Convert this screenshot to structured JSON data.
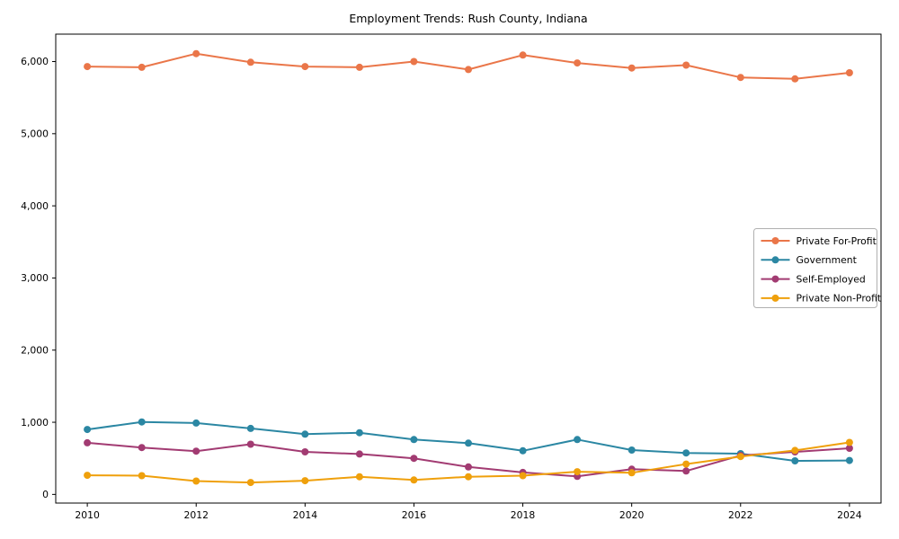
{
  "page": {
    "background": "#ffffff"
  },
  "chart_data": {
    "type": "line",
    "title": "Employment Trends: Rush County, Indiana",
    "xlabel": "",
    "ylabel": "",
    "grid": false,
    "xlim": [
      2009.42,
      2024.58
    ],
    "ylim": [
      -120,
      6380
    ],
    "x": [
      2010,
      2011,
      2012,
      2013,
      2014,
      2015,
      2016,
      2017,
      2018,
      2019,
      2020,
      2021,
      2022,
      2023,
      2024
    ],
    "x_ticks": {
      "values": [
        2010,
        2012,
        2014,
        2016,
        2018,
        2020,
        2022,
        2024
      ],
      "labels": [
        "2010",
        "2012",
        "2014",
        "2016",
        "2018",
        "2020",
        "2022",
        "2024"
      ]
    },
    "y_ticks": {
      "values": [
        0,
        1000,
        2000,
        3000,
        4000,
        5000,
        6000
      ],
      "labels": [
        "0",
        "1,000",
        "2,000",
        "3,000",
        "4,000",
        "5,000",
        "6,000"
      ]
    },
    "series": [
      {
        "name": "Private For-Profit",
        "color": "#EA7649",
        "values": [
          5930,
          5920,
          6110,
          5990,
          5930,
          5920,
          6000,
          5890,
          6090,
          5980,
          5910,
          5950,
          5780,
          5760,
          5845
        ]
      },
      {
        "name": "Government",
        "color": "#2B87A3",
        "values": [
          900,
          1005,
          990,
          915,
          835,
          855,
          760,
          710,
          605,
          760,
          615,
          575,
          565,
          465,
          470
        ]
      },
      {
        "name": "Self-Employed",
        "color": "#A23B72",
        "values": [
          715,
          650,
          600,
          695,
          590,
          560,
          500,
          380,
          305,
          250,
          350,
          325,
          540,
          590,
          640
        ]
      },
      {
        "name": "Private Non-Profit",
        "color": "#EFA00C",
        "values": [
          265,
          260,
          185,
          165,
          190,
          245,
          200,
          245,
          260,
          315,
          300,
          420,
          525,
          610,
          720
        ]
      }
    ],
    "legend": {
      "position": "center-right",
      "border_color": "#b0b0b0",
      "background": "#ffffff"
    },
    "style": {
      "spine_color": "#000000",
      "line_width": 2,
      "marker_radius": 4
    }
  }
}
